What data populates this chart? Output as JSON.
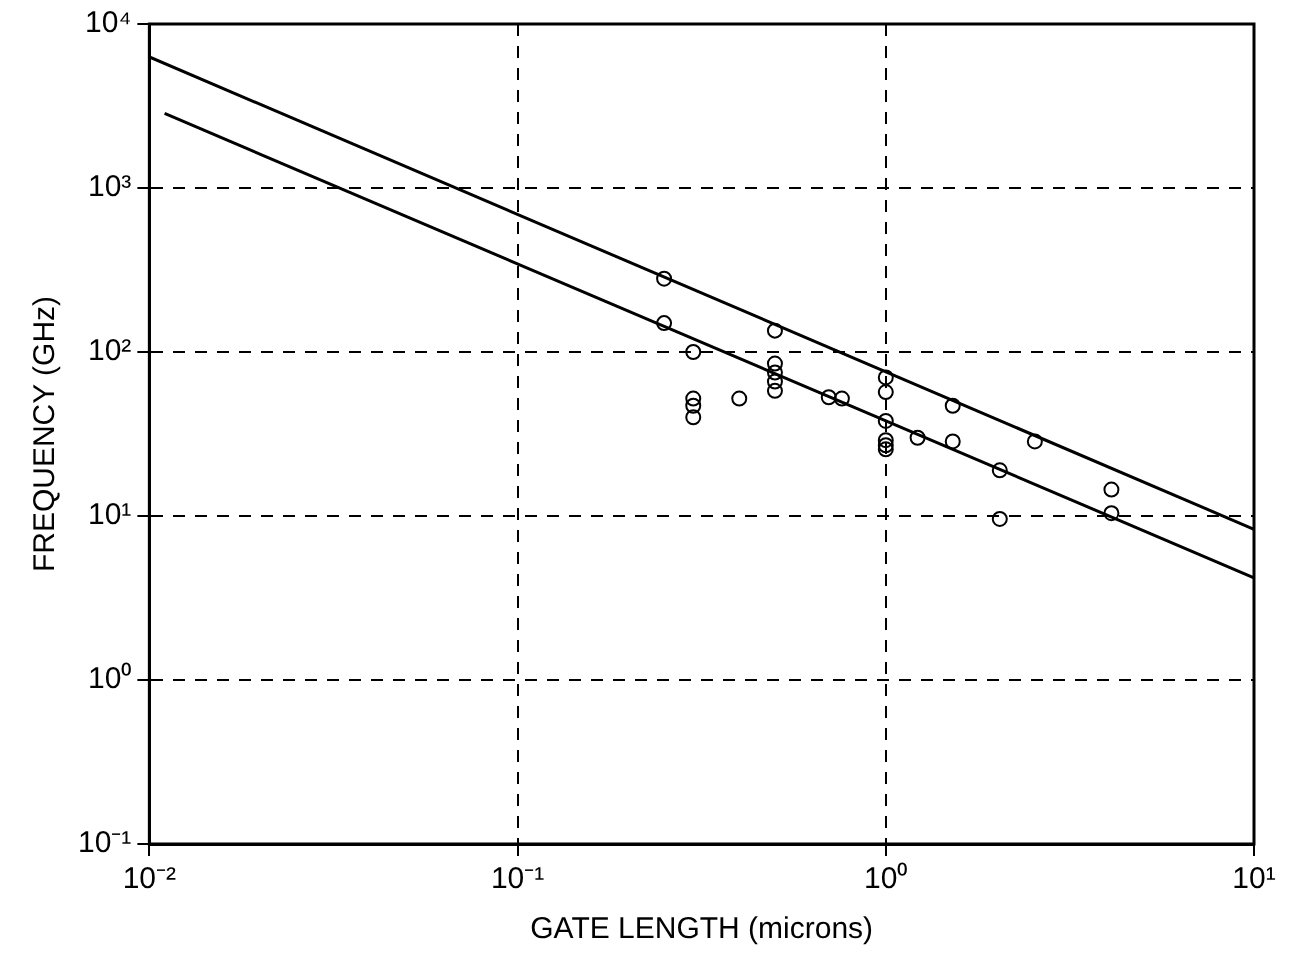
{
  "chart_data": {
    "type": "scatter",
    "xlabel": "GATE LENGTH (microns)",
    "ylabel": "FREQUENCY (GHz)",
    "log": "xy",
    "grid": true,
    "legend": false,
    "xlim": [
      0.01,
      10
    ],
    "ylim": [
      0.1,
      10000
    ],
    "xticks": [
      {
        "value": 0.01,
        "label": "10⁻²"
      },
      {
        "value": 0.1,
        "label": "10⁻¹"
      },
      {
        "value": 1,
        "label": "10⁰"
      },
      {
        "value": 10,
        "label": "10¹"
      }
    ],
    "yticks": [
      {
        "value": 0.1,
        "label": "10⁻¹"
      },
      {
        "value": 1,
        "label": "10⁰"
      },
      {
        "value": 10,
        "label": "10¹"
      },
      {
        "value": 100,
        "label": "10²"
      },
      {
        "value": 1000,
        "label": "10³"
      },
      {
        "value": 10000,
        "label": "10⁴"
      }
    ],
    "series": [
      {
        "type": "line",
        "color": "#000000",
        "marker": "none",
        "line_style": "solid",
        "x": [
          0.01,
          10
        ],
        "values": [
          6300,
          8.3
        ]
      },
      {
        "type": "line",
        "color": "#000000",
        "marker": "none",
        "line_style": "solid",
        "x": [
          0.011,
          10
        ],
        "values": [
          2850,
          4.2
        ]
      },
      {
        "type": "scatter",
        "color": "#000000",
        "marker": "circle",
        "x": [
          0.25,
          0.25,
          0.3,
          0.3,
          0.3,
          0.3,
          0.4,
          0.5,
          0.5,
          0.5,
          0.5,
          0.5,
          0.7,
          0.76,
          1.0,
          1.0,
          1.0,
          1.0,
          1.0,
          1.0,
          1.22,
          1.52,
          1.52,
          2.04,
          2.04,
          2.54,
          4.1,
          4.1
        ],
        "values": [
          280,
          150,
          100,
          52,
          47,
          40,
          52,
          135,
          85,
          75,
          66,
          58,
          53,
          52,
          70,
          57,
          38,
          29,
          27,
          25.5,
          30,
          47,
          28.5,
          19,
          9.6,
          28.5,
          14.5,
          10.4
        ]
      }
    ]
  }
}
